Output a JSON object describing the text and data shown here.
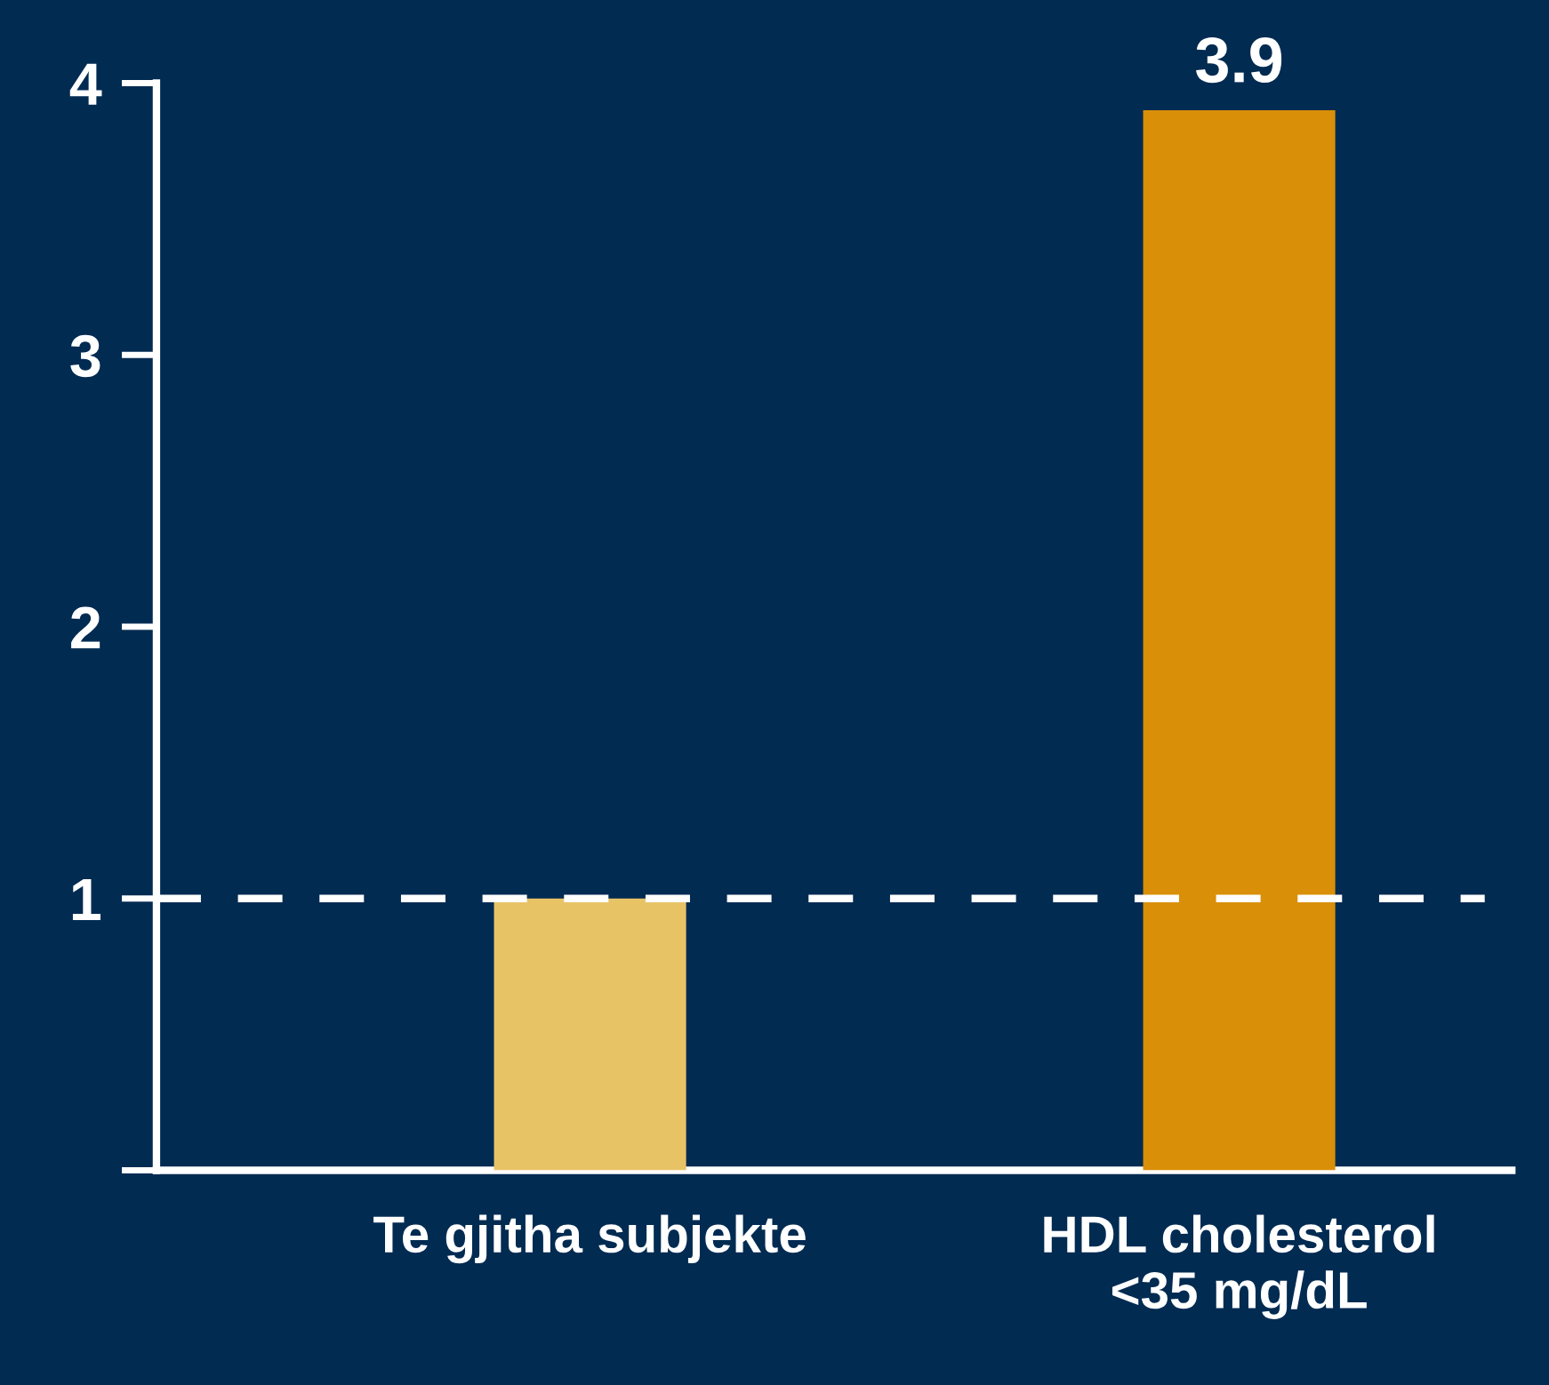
{
  "chart_data": {
    "type": "bar",
    "categories": [
      "Te gjitha subjekte",
      "HDL cholesterol\n<35 mg/dL"
    ],
    "values": [
      1,
      3.9
    ],
    "colors": [
      "#e8c366",
      "#d98f08"
    ],
    "value_labels": [
      null,
      "3.9"
    ],
    "ylim": [
      0,
      4
    ],
    "yticks": [
      {
        "value": 0,
        "label": null
      },
      1,
      2,
      3,
      4
    ],
    "ref_lines": [
      {
        "axis": "y",
        "value": 1,
        "color": "#ffffff",
        "line_style": "dashed"
      }
    ],
    "grid": false,
    "legend": false
  }
}
